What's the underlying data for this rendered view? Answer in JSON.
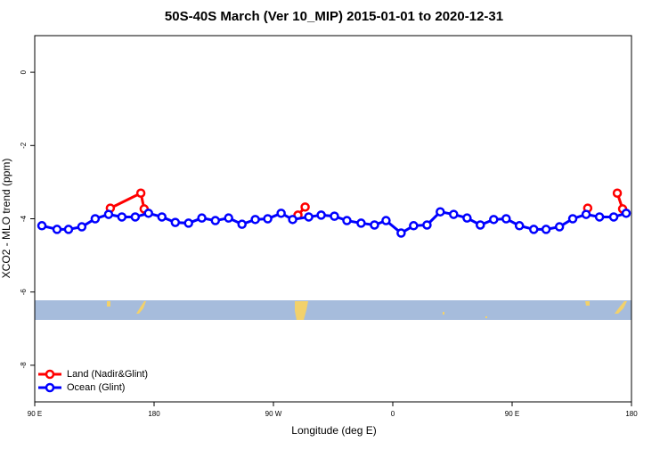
{
  "chart_data": {
    "type": "line",
    "title": "50S-40S March (Ver 10_MIP)   2015-01-01 to 2020-12-31",
    "xlabel": "Longitude (deg E)",
    "ylabel": "XCO2 - MLO trend (ppm)",
    "xlim": [
      90,
      540
    ],
    "xticks": [
      {
        "value": 90,
        "label": "90 E"
      },
      180,
      {
        "value": 270,
        "label": "90 W"
      },
      {
        "value": 360,
        "label": "0"
      },
      {
        "value": 450,
        "label": "90 E"
      },
      {
        "value": 540,
        "label": "180"
      }
    ],
    "ylim": [
      -9,
      1
    ],
    "yticks": [
      0,
      -2,
      -4,
      -6,
      -8
    ],
    "legend": "bottom-left",
    "series": [
      {
        "name": "Land (Nadir&Glint)",
        "color": "#ff0000",
        "x": [
          147,
          170,
          172.5,
          null,
          288.5,
          293.9,
          null,
          507,
          null,
          529.3,
          533.3
        ],
        "values": [
          -3.71,
          -3.3,
          -3.73,
          null,
          -3.9,
          -3.68,
          null,
          -3.71,
          null,
          -3.3,
          -3.73
        ]
      },
      {
        "name": "Ocean (Glint)",
        "color": "#0000ff",
        "x": [
          95.4,
          106.8,
          115.5,
          125.5,
          135.6,
          145.7,
          155.7,
          165.8,
          175.8,
          185.9,
          196,
          206,
          216,
          226.2,
          236.2,
          246.3,
          256.3,
          265.7,
          275.8,
          284.5,
          296.6,
          306,
          316,
          325.4,
          336.1,
          346.2,
          354.9,
          366.3,
          375.7,
          385.8,
          395.8,
          405.9,
          416,
          426,
          436.1,
          445.5,
          455.5,
          466.3,
          475.6,
          485.7,
          495.7,
          505.8,
          515.9,
          526.6,
          536
        ],
        "values": [
          -4.19,
          -4.29,
          -4.29,
          -4.22,
          -4.0,
          -3.88,
          -3.95,
          -3.95,
          -3.85,
          -3.95,
          -4.1,
          -4.12,
          -3.98,
          -4.05,
          -3.98,
          -4.15,
          -4.02,
          -4.0,
          -3.85,
          -4.02,
          -3.95,
          -3.9,
          -3.93,
          -4.05,
          -4.12,
          -4.17,
          -4.05,
          -4.39,
          -4.19,
          -4.17,
          -3.81,
          -3.88,
          -3.98,
          -4.17,
          -4.02,
          -4.0,
          -4.19,
          -4.29,
          -4.29,
          -4.22,
          -4.0,
          -3.88,
          -3.95,
          -3.95,
          -3.85
        ]
      }
    ]
  }
}
